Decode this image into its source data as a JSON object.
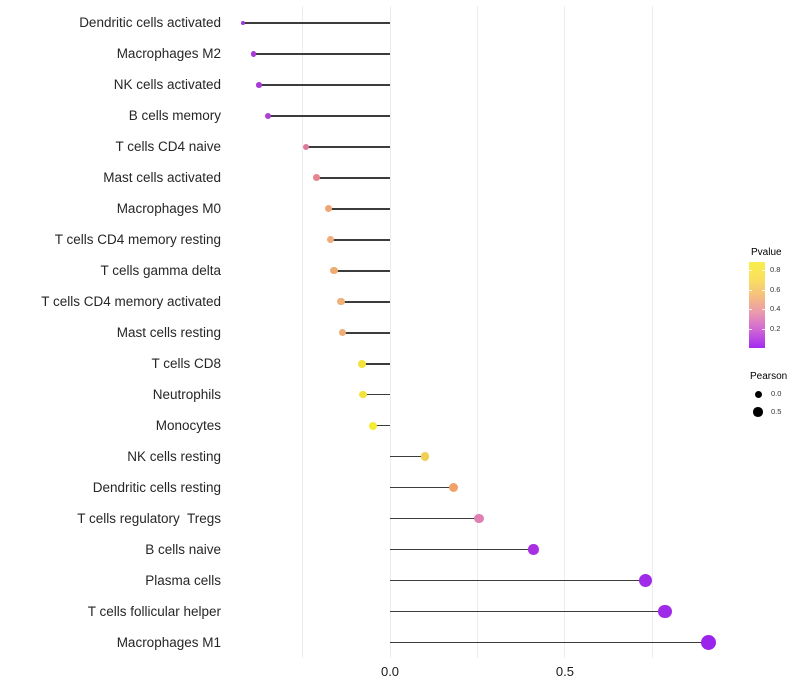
{
  "chart_data": {
    "type": "lollipop",
    "title": "",
    "xlabel": "",
    "ylabel": "",
    "x_axis": {
      "range": [
        -0.463,
        0.963
      ],
      "ticks": [
        {
          "value": 0.0,
          "label": "0.0"
        },
        {
          "value": 0.5,
          "label": "0.5"
        }
      ],
      "gridline_values": [
        -0.25,
        0.0,
        0.25,
        0.5,
        0.75
      ],
      "grid": true
    },
    "points": [
      {
        "name": "Dendritic cells activated",
        "pearson": -0.42,
        "pvalue_est": 0.05,
        "color": "#A038DC",
        "radius": 2.0
      },
      {
        "name": "Macrophages M2",
        "pearson": -0.39,
        "pvalue_est": 0.08,
        "color": "#AA3AD8",
        "radius": 2.6
      },
      {
        "name": "NK cells activated",
        "pearson": -0.375,
        "pvalue_est": 0.08,
        "color": "#AA3AD8",
        "radius": 2.8
      },
      {
        "name": "B cells memory",
        "pearson": -0.35,
        "pvalue_est": 0.1,
        "color": "#B040D2",
        "radius": 3.0
      },
      {
        "name": "T cells CD4 naive",
        "pearson": -0.24,
        "pvalue_est": 0.42,
        "color": "#DE7A9C",
        "radius": 3.4
      },
      {
        "name": "Mast cells activated",
        "pearson": -0.21,
        "pvalue_est": 0.45,
        "color": "#E4858F",
        "radius": 3.4
      },
      {
        "name": "Macrophages M0",
        "pearson": -0.175,
        "pvalue_est": 0.55,
        "color": "#EFA674",
        "radius": 3.5
      },
      {
        "name": "T cells CD4 memory resting",
        "pearson": -0.17,
        "pvalue_est": 0.57,
        "color": "#F0AC79",
        "radius": 3.5
      },
      {
        "name": "T cells gamma delta",
        "pearson": -0.16,
        "pvalue_est": 0.55,
        "color": "#EEAB72",
        "radius": 3.6
      },
      {
        "name": "T cells CD4 memory activated",
        "pearson": -0.14,
        "pvalue_est": 0.57,
        "color": "#F0B078",
        "radius": 3.6
      },
      {
        "name": "Mast cells resting",
        "pearson": -0.135,
        "pvalue_est": 0.56,
        "color": "#EFAE75",
        "radius": 3.6
      },
      {
        "name": "T cells CD8",
        "pearson": -0.08,
        "pvalue_est": 0.8,
        "color": "#F2E43C",
        "radius": 3.8
      },
      {
        "name": "Neutrophils",
        "pearson": -0.078,
        "pvalue_est": 0.8,
        "color": "#F2E43C",
        "radius": 3.8
      },
      {
        "name": "Monocytes",
        "pearson": -0.05,
        "pvalue_est": 0.85,
        "color": "#F6EC33",
        "radius": 4.0
      },
      {
        "name": "NK cells resting",
        "pearson": 0.1,
        "pvalue_est": 0.72,
        "color": "#F1CF52",
        "radius": 4.3
      },
      {
        "name": "Dendritic cells resting",
        "pearson": 0.18,
        "pvalue_est": 0.52,
        "color": "#F0A169",
        "radius": 4.5
      },
      {
        "name": "T cells regulatory  Tregs",
        "pearson": 0.255,
        "pvalue_est": 0.38,
        "color": "#DF80B2",
        "radius": 4.8
      },
      {
        "name": "B cells naive",
        "pearson": 0.41,
        "pvalue_est": 0.08,
        "color": "#A82FE2",
        "radius": 5.3
      },
      {
        "name": "Plasma cells",
        "pearson": 0.73,
        "pvalue_est": 0.03,
        "color": "#9F2BE9",
        "radius": 6.6
      },
      {
        "name": "T cells follicular helper",
        "pearson": 0.785,
        "pvalue_est": 0.03,
        "color": "#9F2BE9",
        "radius": 6.9
      },
      {
        "name": "Macrophages M1",
        "pearson": 0.91,
        "pvalue_est": 0.02,
        "color": "#9B24EC",
        "radius": 7.5
      }
    ],
    "legends": {
      "pvalue": {
        "title": "Pvalue",
        "tick_labels": [
          "0.8",
          "0.6",
          "0.4",
          "0.2"
        ],
        "gradient_stops": [
          {
            "color": "#A32BF2",
            "pos": 0
          },
          {
            "color": "#CE63D6",
            "pos": 20
          },
          {
            "color": "#EA96B0",
            "pos": 40
          },
          {
            "color": "#F5BE80",
            "pos": 60
          },
          {
            "color": "#FADF60",
            "pos": 80
          },
          {
            "color": "#F8EE4B",
            "pos": 100
          }
        ]
      },
      "pearson": {
        "title": "Pearson",
        "items": [
          {
            "label": "0.0",
            "radius": 3.5
          },
          {
            "label": "0.5",
            "radius": 4.7
          }
        ],
        "dot_color": "#000000"
      }
    },
    "colors": {
      "stem": "#3C3C3C",
      "gridline": "#ECECEC",
      "axis_text": "#1A1A1A",
      "label_text": "#262626",
      "background": "#FFFFFF"
    }
  }
}
